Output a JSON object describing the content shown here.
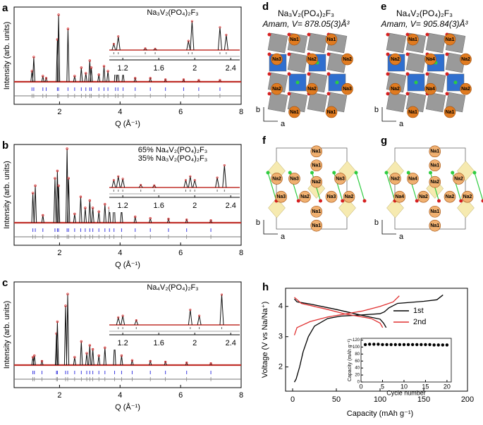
{
  "chart_data": [
    {
      "type": "xrd",
      "panel": "a",
      "xlabel": "Q (Å⁻¹)",
      "ylabel": "Intensity (arb. units)",
      "xlim": [
        0.5,
        8
      ],
      "xticks": [
        2,
        4,
        6,
        8
      ],
      "ylim": [
        0,
        1
      ],
      "x": [
        1.09,
        1.15,
        1.45,
        1.56,
        1.93,
        1.97,
        2.28,
        2.5,
        2.72,
        2.87,
        3.0,
        3.05,
        3.3,
        3.47,
        3.6,
        3.85,
        3.93,
        4.1,
        4.5,
        5.0,
        5.5,
        6.1,
        6.6,
        7.3
      ],
      "values": [
        0.15,
        0.35,
        0.08,
        0.05,
        0.6,
        0.95,
        0.75,
        0.08,
        0.2,
        0.12,
        0.3,
        0.2,
        0.1,
        0.22,
        0.15,
        0.3,
        0.2,
        0.12,
        0.05,
        0.05,
        0.03,
        0.03,
        0.02,
        0.02
      ],
      "inset": {
        "labels": [
          {
            "text": "Na₃V₂(PO₄)₂F₃",
            "color": "#2424d8"
          }
        ],
        "xlim": [
          1.05,
          2.5
        ],
        "xticks": [
          1.2,
          1.6,
          2,
          2.4
        ],
        "ylim": [
          0,
          1
        ],
        "x": [
          1.1,
          1.15,
          1.45,
          1.56,
          1.93,
          1.97,
          2.28,
          2.35
        ],
        "values": [
          0.2,
          0.45,
          0.05,
          0.04,
          0.3,
          0.95,
          0.75,
          0.5
        ]
      }
    },
    {
      "type": "xrd",
      "panel": "b",
      "xlabel": "Q (Å⁻¹)",
      "ylabel": "Intensity (arb. units)",
      "xlim": [
        0.5,
        8
      ],
      "xticks": [
        2,
        4,
        6,
        8
      ],
      "ylim": [
        0,
        1
      ],
      "x": [
        1.12,
        1.2,
        1.45,
        1.85,
        1.93,
        1.97,
        2.25,
        2.3,
        2.5,
        2.7,
        2.85,
        3.0,
        3.1,
        3.3,
        3.5,
        3.65,
        3.8,
        4.05,
        4.5,
        5.0,
        5.6,
        6.2,
        7.0
      ],
      "values": [
        0.4,
        0.5,
        0.1,
        0.6,
        0.7,
        0.5,
        1.0,
        0.6,
        0.12,
        0.35,
        0.2,
        0.3,
        0.2,
        0.15,
        0.25,
        0.2,
        0.4,
        0.2,
        0.08,
        0.06,
        0.05,
        0.04,
        0.03
      ],
      "inset": {
        "labels": [
          {
            "text": "65% Na₄V₂(PO₄)₂F₃",
            "color": "#e8842c"
          },
          {
            "text": "35% Na₃V₂(PO₄)₂F₃",
            "color": "#2424d8"
          }
        ],
        "xlim": [
          1.05,
          2.5
        ],
        "xticks": [
          1.2,
          1.6,
          2,
          2.4
        ],
        "ylim": [
          0,
          1
        ],
        "x": [
          1.1,
          1.15,
          1.2,
          1.4,
          1.55,
          1.9,
          1.95,
          2.0,
          2.25,
          2.33
        ],
        "values": [
          0.3,
          0.45,
          0.35,
          0.1,
          0.08,
          0.3,
          0.45,
          0.3,
          0.4,
          0.9
        ]
      }
    },
    {
      "type": "xrd",
      "panel": "c",
      "xlabel": "Q (Å⁻¹)",
      "ylabel": "Intensity (arb. units)",
      "xlim": [
        0.5,
        8
      ],
      "xticks": [
        2,
        4,
        6,
        8
      ],
      "ylim": [
        0,
        1
      ],
      "x": [
        1.12,
        1.17,
        1.42,
        1.9,
        1.93,
        2.2,
        2.27,
        2.5,
        2.72,
        2.9,
        3.0,
        3.1,
        3.3,
        3.5,
        3.82,
        4.05,
        4.4,
        5.0,
        5.5,
        6.2,
        7.0
      ],
      "values": [
        0.1,
        0.12,
        0.05,
        0.4,
        0.55,
        0.75,
        0.9,
        0.1,
        0.3,
        0.15,
        0.25,
        0.2,
        0.12,
        0.22,
        0.3,
        0.12,
        0.06,
        0.05,
        0.04,
        0.03,
        0.02
      ],
      "inset": {
        "labels": [
          {
            "text": "Na₄V₂(PO₄)₂F₃",
            "color": "#e8842c"
          }
        ],
        "xlim": [
          1.05,
          2.5
        ],
        "xticks": [
          1.2,
          1.6,
          2,
          2.4
        ],
        "ylim": [
          0,
          1
        ],
        "x": [
          1.15,
          1.2,
          1.35,
          1.95,
          2.05,
          2.3
        ],
        "values": [
          0.25,
          0.3,
          0.15,
          0.5,
          0.3,
          1.0
        ]
      }
    },
    {
      "type": "line",
      "panel": "h",
      "xlabel": "Capacity (mAh g⁻¹)",
      "ylabel": "Voltage (V vs Na/Na⁺)",
      "xlim": [
        0,
        200
      ],
      "xticks": [
        0,
        50,
        100,
        150,
        200
      ],
      "ylim": [
        1.2,
        4.6
      ],
      "yticks": [
        2,
        3,
        4
      ],
      "series": [
        {
          "name": "1st",
          "color": "#000000",
          "charge": {
            "x": [
              2,
              4,
              8,
              12,
              18,
              25,
              40,
              55,
              80,
              100,
              105,
              110,
              120,
              150,
              165,
              172
            ],
            "values": [
              1.5,
              1.6,
              2.0,
              2.5,
              3.0,
              3.35,
              3.6,
              3.68,
              3.72,
              3.76,
              3.82,
              3.95,
              4.1,
              4.17,
              4.22,
              4.38
            ]
          },
          "discharge": {
            "x": [
              2,
              5,
              20,
              50,
              80,
              100,
              104,
              107
            ],
            "values": [
              4.25,
              4.15,
              4.08,
              3.9,
              3.7,
              3.58,
              3.45,
              3.3
            ]
          }
        },
        {
          "name": "2nd",
          "color": "#e03030",
          "charge": {
            "x": [
              2,
              5,
              20,
              40,
              60,
              80,
              100,
              115,
              122
            ],
            "values": [
              3.05,
              3.3,
              3.5,
              3.65,
              3.75,
              3.85,
              4.0,
              4.15,
              4.35
            ]
          },
          "discharge": {
            "x": [
              2,
              10,
              40,
              60,
              90,
              100,
              103
            ],
            "values": [
              4.3,
              4.1,
              3.9,
              3.75,
              3.6,
              3.45,
              3.3
            ]
          }
        }
      ],
      "inset": {
        "type": "scatter",
        "xlabel": "Cycle number",
        "ylabel": "Capacity (mAh g⁻¹)",
        "xlim": [
          0,
          21
        ],
        "xticks": [
          0,
          5,
          10,
          15,
          20
        ],
        "ylim": [
          0,
          125
        ],
        "yticks": [
          0,
          20,
          40,
          60,
          80,
          100,
          120
        ],
        "x": [
          1,
          2,
          3,
          4,
          5,
          6,
          7,
          8,
          9,
          10,
          11,
          12,
          13,
          14,
          15,
          16,
          17,
          18,
          19,
          20
        ],
        "values": [
          107,
          108,
          108,
          108,
          107,
          107,
          107,
          107,
          107,
          107,
          107,
          107,
          107,
          107,
          107,
          107,
          106,
          106,
          106,
          106
        ]
      }
    }
  ],
  "structures": [
    {
      "panel": "d",
      "title": "Na₃V₂(PO₄)₂F₃",
      "subtitle": "Amam, V= 878.05(3)Å³",
      "color": "#2424d8",
      "axes": [
        "b",
        "a"
      ],
      "labels": [
        "Na1",
        "Na1",
        "Na3",
        "Na2",
        "Na2",
        "Na2",
        "Na2",
        "Na3",
        "Na1",
        "Na1"
      ]
    },
    {
      "panel": "e",
      "title": "Na₄V₂(PO₄)₂F₃",
      "subtitle": "Amam, V= 905.84(3)Å³",
      "color": "#e8842c",
      "axes": [
        "b",
        "a"
      ],
      "labels": [
        "Na1",
        "Na1",
        "Na2",
        "Na4",
        "Na2",
        "Na2",
        "Na4",
        "Na2",
        "Na1",
        "Na1"
      ]
    },
    {
      "panel": "f",
      "axes": [
        "b",
        "a"
      ],
      "labels": [
        "Na1",
        "Na1",
        "Na2",
        "Na3",
        "Na2",
        "Na3",
        "Na3",
        "Na2",
        "Na3",
        "Na2",
        "Na1",
        "Na1"
      ]
    },
    {
      "panel": "g",
      "axes": [
        "b",
        "a"
      ],
      "labels": [
        "Na1",
        "Na1",
        "Na2",
        "Na4",
        "Na2",
        "Na2",
        "Na4",
        "Na2",
        "Na2",
        "Na2",
        "Na1",
        "Na1"
      ]
    }
  ]
}
